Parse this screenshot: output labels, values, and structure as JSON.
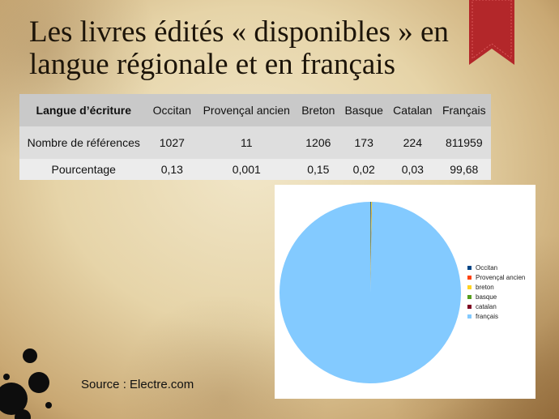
{
  "slide": {
    "title_line1": "Les livres édités « disponibles » en",
    "title_line2": "langue régionale et en français",
    "source": "Source : Electre.com"
  },
  "table": {
    "header": [
      "Langue d’écriture",
      "Occitan",
      "Provençal ancien",
      "Breton",
      "Basque",
      "Catalan",
      "Français"
    ],
    "rows": [
      [
        "Nombre de références",
        "1027",
        "11",
        "1206",
        "173",
        "224",
        "811959"
      ],
      [
        "Pourcentage",
        "0,13",
        "0,001",
        "0,15",
        "0,02",
        "0,03",
        "99,68"
      ]
    ]
  },
  "chart_data": {
    "type": "pie",
    "categories": [
      "Occitan",
      "Provençal ancien",
      "breton",
      "basque",
      "catalan",
      "français"
    ],
    "values": [
      1027,
      11,
      1206,
      173,
      224,
      811959
    ],
    "colors": [
      "#004586",
      "#ff420e",
      "#ffd320",
      "#579d1c",
      "#7e0021",
      "#83caff"
    ],
    "legend_position": "right"
  },
  "decor": {
    "bookmark_color": "#b3272a",
    "ink_color": "#0d0d0d"
  }
}
